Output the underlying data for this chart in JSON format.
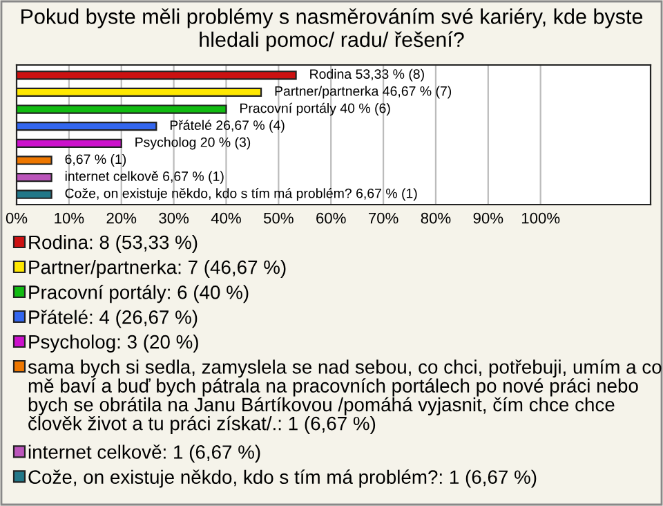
{
  "chart_data": {
    "type": "bar",
    "orientation": "horizontal",
    "title": "Pokud byste měli problémy s nasměrováním své kariéry, kde byste hledali pomoc/ radu/ řešení?",
    "categories": [
      null,
      null,
      null,
      null,
      null,
      null,
      null,
      null
    ],
    "series": [
      {
        "name": "Rodina: 8 (53,33 %)",
        "color": "#cc1111",
        "values": [
          53.33,
          null,
          null,
          null,
          null,
          null,
          null,
          null
        ],
        "value_labels": [
          "Rodina 53,33 % (8)",
          null,
          null,
          null,
          null,
          null,
          null,
          null
        ]
      },
      {
        "name": "Partner/partnerka: 7 (46,67 %)",
        "color": "#ffe800",
        "values": [
          null,
          46.67,
          null,
          null,
          null,
          null,
          null,
          null
        ],
        "value_labels": [
          null,
          "Partner/partnerka 46,67 % (7)",
          null,
          null,
          null,
          null,
          null,
          null
        ]
      },
      {
        "name": "Pracovní portály: 6 (40 %)",
        "color": "#11bb11",
        "values": [
          null,
          null,
          40,
          null,
          null,
          null,
          null,
          null
        ],
        "value_labels": [
          null,
          null,
          "Pracovní portály 40 % (6)",
          null,
          null,
          null,
          null,
          null
        ]
      },
      {
        "name": "Přátelé: 4 (26,67 %)",
        "color": "#3366ee",
        "values": [
          null,
          null,
          null,
          26.67,
          null,
          null,
          null,
          null
        ],
        "value_labels": [
          null,
          null,
          null,
          "Přátelé 26,67 % (4)",
          null,
          null,
          null,
          null
        ]
      },
      {
        "name": "Psycholog: 3 (20 %)",
        "color": "#cc11cc",
        "values": [
          null,
          null,
          null,
          null,
          20,
          null,
          null,
          null
        ],
        "value_labels": [
          null,
          null,
          null,
          null,
          "Psycholog 20 % (3)",
          null,
          null,
          null
        ]
      },
      {
        "name": "sama bych si sedla, zamyslela se nad sebou, co chci, potřebuji, umím a co mě baví a buď bych pátrala na pracovních portálech po nové práci nebo bych se obrátila na Janu Bártíkovou /pomáhá vyjasnit, čím chce chce člověk život a tu práci získat/.: 1 (6,67 %)",
        "color": "#ee7700",
        "values": [
          null,
          null,
          null,
          null,
          null,
          6.67,
          null,
          null
        ],
        "value_labels": [
          null,
          null,
          null,
          null,
          null,
          "6,67 % (1)",
          null,
          null
        ]
      },
      {
        "name": "internet celkově: 1 (6,67 %)",
        "color": "#bb55bb",
        "values": [
          null,
          null,
          null,
          null,
          null,
          null,
          6.67,
          null
        ],
        "value_labels": [
          null,
          null,
          null,
          null,
          null,
          null,
          "internet celkově 6,67 % (1)",
          null
        ]
      },
      {
        "name": "Cože, on existuje někdo, kdo s tím má problém?: 1 (6,67 %)",
        "color": "#227788",
        "values": [
          null,
          null,
          null,
          null,
          null,
          null,
          null,
          6.67
        ],
        "value_labels": [
          null,
          null,
          null,
          null,
          null,
          null,
          null,
          "Cože, on existuje někdo, kdo s tím má problém? 6,67 % (1)"
        ]
      }
    ],
    "xlim": [
      0,
      121
    ],
    "xticks": [
      {
        "value": 0,
        "label": "0%"
      },
      {
        "value": 10,
        "label": "10%"
      },
      {
        "value": 20,
        "label": "20%"
      },
      {
        "value": 30,
        "label": "30%"
      },
      {
        "value": 40,
        "label": "40%"
      },
      {
        "value": 50,
        "label": "50%"
      },
      {
        "value": 60,
        "label": "60%"
      },
      {
        "value": 70,
        "label": "70%"
      },
      {
        "value": 80,
        "label": "80%"
      },
      {
        "value": 90,
        "label": "90%"
      },
      {
        "value": 100,
        "label": "100%"
      }
    ],
    "grid": "x",
    "legend": "bottom",
    "tick_labels": "x"
  }
}
